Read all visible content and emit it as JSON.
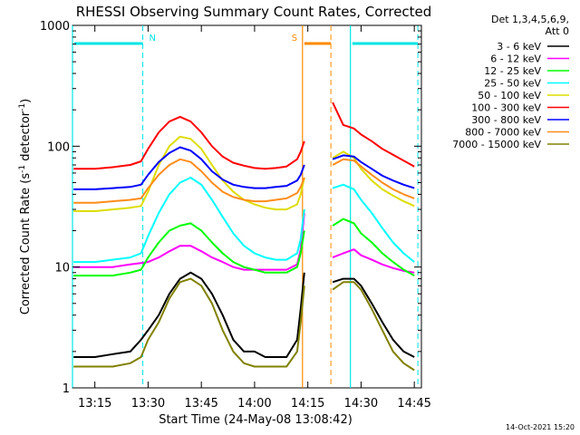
{
  "chart_data": {
    "type": "line",
    "title": "RHESSI Observing Summary Count Rates, Corrected",
    "xlabel": "Start Time (24-May-08 13:08:42)",
    "ylabel": "Corrected Count Rate (s⁻¹ detector⁻¹)",
    "ylabel_parts": {
      "pre": "Corrected Count Rate (s",
      "exp1": "-1",
      "mid": " detector",
      "exp2": "-1",
      "post": ")"
    },
    "yscale": "log",
    "ylim": [
      1,
      1000
    ],
    "xlim": [
      "13:08:42",
      "14:47:00"
    ],
    "x_ticks": [
      "13:15",
      "13:30",
      "13:45",
      "14:00",
      "14:15",
      "14:30",
      "14:45"
    ],
    "y_ticks": [
      "1",
      "10",
      "100",
      "1000"
    ],
    "detectors_line1": "Det 1,3,4,5,6,9,",
    "detectors_line2": "Att 0",
    "footer_date": "14-Oct-2021 15:20",
    "grid": false,
    "legend_position": "right",
    "segments": [
      {
        "flag": "N",
        "color": "#00e5e5",
        "start": "13:08:42",
        "end": "13:28:30"
      },
      {
        "flag": "S",
        "color": "#ff8a00",
        "start": "14:13:30",
        "end": "14:21:30"
      },
      {
        "flag": "",
        "color": "#00e5e5",
        "start": "14:27:00",
        "end": "14:46:00"
      }
    ],
    "series": [
      {
        "name": "3 - 6 keV",
        "color": "#000000",
        "x": [
          "13:09",
          "13:15",
          "13:20",
          "13:25",
          "13:28",
          "13:30",
          "13:33",
          "13:36",
          "13:39",
          "13:42",
          "13:45",
          "13:48",
          "13:51",
          "13:54",
          "13:57",
          "14:00",
          "14:03",
          "14:06",
          "14:09",
          "14:12",
          "14:13",
          "14:14",
          "14:20",
          "14:22",
          "14:25",
          "14:28",
          "14:30",
          "14:33",
          "14:36",
          "14:39",
          "14:42",
          "14:45"
        ],
        "y": [
          1.8,
          1.8,
          1.9,
          2.0,
          2.5,
          3.0,
          4.0,
          6.0,
          8.0,
          9.0,
          8.0,
          6.0,
          4.0,
          2.5,
          2.0,
          2.0,
          1.8,
          1.8,
          1.8,
          2.5,
          4.5,
          9.0,
          null,
          7.5,
          8.0,
          8.0,
          7.0,
          5.0,
          3.5,
          2.5,
          2.0,
          1.8
        ]
      },
      {
        "name": "6 - 12 keV",
        "color": "#ff00ff",
        "x": [
          "13:09",
          "13:15",
          "13:20",
          "13:25",
          "13:28",
          "13:30",
          "13:33",
          "13:36",
          "13:39",
          "13:42",
          "13:45",
          "13:48",
          "13:51",
          "13:54",
          "13:57",
          "14:00",
          "14:03",
          "14:06",
          "14:09",
          "14:12",
          "14:13",
          "14:14",
          "14:20",
          "14:22",
          "14:25",
          "14:28",
          "14:30",
          "14:33",
          "14:36",
          "14:39",
          "14:42",
          "14:45"
        ],
        "y": [
          10.0,
          10.0,
          10.0,
          10.5,
          10.8,
          11.0,
          12.0,
          13.5,
          15.0,
          15.0,
          13.5,
          12.0,
          11.0,
          10.0,
          9.5,
          9.5,
          9.5,
          9.5,
          9.5,
          10.5,
          14.0,
          28.0,
          null,
          12.0,
          13.0,
          14.0,
          12.5,
          11.5,
          10.5,
          9.8,
          9.3,
          9.0
        ]
      },
      {
        "name": "12 - 25 keV",
        "color": "#00ff00",
        "x": [
          "13:09",
          "13:15",
          "13:20",
          "13:25",
          "13:28",
          "13:30",
          "13:33",
          "13:36",
          "13:39",
          "13:42",
          "13:45",
          "13:48",
          "13:51",
          "13:54",
          "13:57",
          "14:00",
          "14:03",
          "14:06",
          "14:09",
          "14:12",
          "14:13",
          "14:14",
          "14:20",
          "14:22",
          "14:25",
          "14:28",
          "14:30",
          "14:33",
          "14:36",
          "14:39",
          "14:42",
          "14:45"
        ],
        "y": [
          8.5,
          8.5,
          8.5,
          9.0,
          9.5,
          12.0,
          16.0,
          20.0,
          22.0,
          23.0,
          20.0,
          16.0,
          13.0,
          11.0,
          10.0,
          9.5,
          9.0,
          9.0,
          9.0,
          10.0,
          13.0,
          20.0,
          null,
          22.0,
          25.0,
          23.0,
          19.0,
          16.0,
          13.0,
          11.0,
          9.5,
          8.5
        ]
      },
      {
        "name": "25 - 50 keV",
        "color": "#00ffff",
        "x": [
          "13:09",
          "13:15",
          "13:20",
          "13:25",
          "13:28",
          "13:30",
          "13:33",
          "13:36",
          "13:39",
          "13:42",
          "13:45",
          "13:48",
          "13:51",
          "13:54",
          "13:57",
          "14:00",
          "14:03",
          "14:06",
          "14:09",
          "14:12",
          "14:13",
          "14:14",
          "14:20",
          "14:22",
          "14:25",
          "14:28",
          "14:30",
          "14:33",
          "14:36",
          "14:39",
          "14:42",
          "14:45"
        ],
        "y": [
          11.0,
          11.0,
          11.5,
          12.0,
          13.0,
          18.0,
          28.0,
          40.0,
          50.0,
          55.0,
          48.0,
          36.0,
          26.0,
          19.0,
          15.0,
          13.0,
          12.0,
          11.5,
          11.5,
          13.0,
          17.0,
          30.0,
          null,
          45.0,
          48.0,
          44.0,
          36.0,
          28.0,
          21.0,
          16.0,
          13.0,
          11.0
        ]
      },
      {
        "name": "50 - 100 keV",
        "color": "#dddd00",
        "x": [
          "13:09",
          "13:15",
          "13:20",
          "13:25",
          "13:28",
          "13:30",
          "13:33",
          "13:36",
          "13:39",
          "13:42",
          "13:45",
          "13:48",
          "13:51",
          "13:54",
          "13:57",
          "14:00",
          "14:03",
          "14:06",
          "14:09",
          "14:12",
          "14:13",
          "14:14",
          "14:20",
          "14:22",
          "14:25",
          "14:28",
          "14:30",
          "14:33",
          "14:36",
          "14:39",
          "14:42",
          "14:45"
        ],
        "y": [
          29.0,
          29.0,
          30.0,
          31.0,
          32.0,
          42.0,
          70.0,
          100.0,
          120.0,
          115.0,
          95.0,
          70.0,
          52.0,
          42.0,
          36.0,
          33.0,
          31.0,
          30.0,
          30.0,
          33.0,
          40.0,
          55.0,
          null,
          80.0,
          90.0,
          80.0,
          65.0,
          52.0,
          44.0,
          39.0,
          35.0,
          32.0
        ]
      },
      {
        "name": "100 - 300 keV",
        "color": "#ff0000",
        "x": [
          "13:09",
          "13:15",
          "13:20",
          "13:25",
          "13:28",
          "13:30",
          "13:33",
          "13:36",
          "13:39",
          "13:42",
          "13:45",
          "13:48",
          "13:51",
          "13:54",
          "13:57",
          "14:00",
          "14:03",
          "14:06",
          "14:09",
          "14:12",
          "14:13",
          "14:14",
          "14:20",
          "14:22",
          "14:25",
          "14:28",
          "14:30",
          "14:33",
          "14:36",
          "14:39",
          "14:42",
          "14:45"
        ],
        "y": [
          65.0,
          65.0,
          67.0,
          70.0,
          75.0,
          95.0,
          130.0,
          160.0,
          175.0,
          160.0,
          130.0,
          100.0,
          82.0,
          73.0,
          69.0,
          66.0,
          65.0,
          66.0,
          68.0,
          78.0,
          90.0,
          110.0,
          null,
          230.0,
          150.0,
          140.0,
          125.0,
          110.0,
          95.0,
          85.0,
          76.0,
          68.0
        ]
      },
      {
        "name": "300 - 800 keV",
        "color": "#0000ff",
        "x": [
          "13:09",
          "13:15",
          "13:20",
          "13:25",
          "13:28",
          "13:30",
          "13:33",
          "13:36",
          "13:39",
          "13:42",
          "13:45",
          "13:48",
          "13:51",
          "13:54",
          "13:57",
          "14:00",
          "14:03",
          "14:06",
          "14:09",
          "14:12",
          "14:13",
          "14:14",
          "14:20",
          "14:22",
          "14:25",
          "14:28",
          "14:30",
          "14:33",
          "14:36",
          "14:39",
          "14:42",
          "14:45"
        ],
        "y": [
          44.0,
          44.0,
          45.0,
          46.0,
          48.0,
          58.0,
          74.0,
          88.0,
          98.0,
          92.0,
          78.0,
          62.0,
          53.0,
          48.0,
          46.0,
          45.0,
          45.0,
          46.0,
          47.0,
          52.0,
          58.0,
          70.0,
          null,
          78.0,
          84.0,
          82.0,
          74.0,
          65.0,
          57.0,
          52.0,
          48.0,
          45.0
        ]
      },
      {
        "name": "800 - 7000 keV",
        "color": "#ff8c1a",
        "x": [
          "13:09",
          "13:15",
          "13:20",
          "13:25",
          "13:28",
          "13:30",
          "13:33",
          "13:36",
          "13:39",
          "13:42",
          "13:45",
          "13:48",
          "13:51",
          "13:54",
          "13:57",
          "14:00",
          "14:03",
          "14:06",
          "14:09",
          "14:12",
          "14:13",
          "14:14",
          "14:20",
          "14:22",
          "14:25",
          "14:28",
          "14:30",
          "14:33",
          "14:36",
          "14:39",
          "14:42",
          "14:45"
        ],
        "y": [
          34.0,
          34.0,
          35.0,
          36.0,
          37.0,
          45.0,
          58.0,
          70.0,
          78.0,
          74.0,
          62.0,
          50.0,
          42.0,
          38.0,
          36.0,
          35.0,
          35.0,
          36.0,
          37.0,
          41.0,
          46.0,
          55.0,
          null,
          70.0,
          78.0,
          76.0,
          68.0,
          58.0,
          50.0,
          44.0,
          40.0,
          37.0
        ]
      },
      {
        "name": "7000 - 15000 keV",
        "color": "#808000",
        "x": [
          "13:09",
          "13:15",
          "13:20",
          "13:25",
          "13:28",
          "13:30",
          "13:33",
          "13:36",
          "13:39",
          "13:42",
          "13:45",
          "13:48",
          "13:51",
          "13:54",
          "13:57",
          "14:00",
          "14:03",
          "14:06",
          "14:09",
          "14:12",
          "14:13",
          "14:14",
          "14:20",
          "14:22",
          "14:25",
          "14:28",
          "14:30",
          "14:33",
          "14:36",
          "14:39",
          "14:42",
          "14:45"
        ],
        "y": [
          1.5,
          1.5,
          1.5,
          1.6,
          1.8,
          2.5,
          3.5,
          5.5,
          7.5,
          8.0,
          7.0,
          5.0,
          3.0,
          2.0,
          1.6,
          1.5,
          1.5,
          1.5,
          1.5,
          2.0,
          3.5,
          7.0,
          null,
          6.5,
          7.5,
          7.5,
          6.5,
          4.5,
          3.0,
          2.0,
          1.6,
          1.4
        ]
      }
    ]
  }
}
